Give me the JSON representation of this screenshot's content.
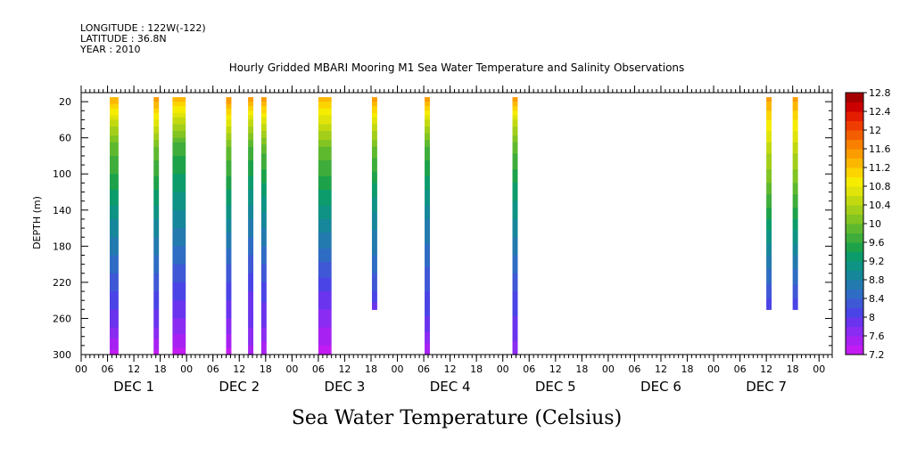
{
  "header": {
    "longitude": "LONGITUDE : 122W(-122)",
    "latitude": "LATITUDE : 36.8N",
    "year": "YEAR : 2010"
  },
  "chart_data": {
    "type": "heatmap",
    "title": "Hourly Gridded MBARI Mooring M1 Sea Water Temperature and Salinity Observations",
    "xlabel_main": "Sea Water Temperature (Celsius)",
    "ylabel": "DEPTH (m)",
    "x_unit": "hours since DEC 1 00:00",
    "xlim": [
      0,
      171
    ],
    "ylim": [
      300,
      10
    ],
    "y_inverted": true,
    "y_ticks": [
      20,
      60,
      100,
      140,
      180,
      220,
      260,
      300
    ],
    "x_hour_ticks": [
      "00",
      "06",
      "12",
      "18",
      "00",
      "06",
      "12",
      "18",
      "00",
      "06",
      "12",
      "18",
      "00",
      "06",
      "12",
      "18",
      "00",
      "06",
      "12",
      "18",
      "00",
      "06",
      "12",
      "18",
      "00",
      "06",
      "12",
      "18",
      "00"
    ],
    "day_labels": [
      "DEC 1",
      "DEC 2",
      "DEC 3",
      "DEC 4",
      "DEC 5",
      "DEC 6",
      "DEC 7"
    ],
    "colorbar": {
      "labels": [
        "12.8",
        "12.4",
        "12",
        "11.6",
        "11.2",
        "10.8",
        "10.4",
        "10",
        "9.6",
        "9.2",
        "8.8",
        "8.4",
        "8",
        "7.6",
        "7.2"
      ],
      "levels": [
        {
          "lo": 7.2,
          "hi": 7.4,
          "color": "#c21cf2"
        },
        {
          "lo": 7.4,
          "hi": 7.6,
          "color": "#a722f2"
        },
        {
          "lo": 7.6,
          "hi": 7.8,
          "color": "#8a2cf2"
        },
        {
          "lo": 7.8,
          "hi": 8.0,
          "color": "#6a34ee"
        },
        {
          "lo": 8.0,
          "hi": 8.2,
          "color": "#4a44e6"
        },
        {
          "lo": 8.2,
          "hi": 8.4,
          "color": "#3f58d6"
        },
        {
          "lo": 8.4,
          "hi": 8.6,
          "color": "#2f6cc4"
        },
        {
          "lo": 8.6,
          "hi": 8.8,
          "color": "#227aae"
        },
        {
          "lo": 8.8,
          "hi": 9.0,
          "color": "#16879a"
        },
        {
          "lo": 9.0,
          "hi": 9.2,
          "color": "#0e9384"
        },
        {
          "lo": 9.2,
          "hi": 9.4,
          "color": "#0c9c6c"
        },
        {
          "lo": 9.4,
          "hi": 9.6,
          "color": "#1da24a"
        },
        {
          "lo": 9.6,
          "hi": 9.8,
          "color": "#3fad3b"
        },
        {
          "lo": 9.8,
          "hi": 10.0,
          "color": "#5fb92f"
        },
        {
          "lo": 10.0,
          "hi": 10.2,
          "color": "#82c422"
        },
        {
          "lo": 10.2,
          "hi": 10.4,
          "color": "#a3ce1a"
        },
        {
          "lo": 10.4,
          "hi": 10.6,
          "color": "#c2d910"
        },
        {
          "lo": 10.6,
          "hi": 10.8,
          "color": "#e0e40a"
        },
        {
          "lo": 10.8,
          "hi": 11.0,
          "color": "#f6ec00"
        },
        {
          "lo": 11.0,
          "hi": 11.2,
          "color": "#fcd400"
        },
        {
          "lo": 11.2,
          "hi": 11.4,
          "color": "#fcb800"
        },
        {
          "lo": 11.4,
          "hi": 11.6,
          "color": "#fb9c00"
        },
        {
          "lo": 11.6,
          "hi": 11.8,
          "color": "#f87f00"
        },
        {
          "lo": 11.8,
          "hi": 12.0,
          "color": "#f35e00"
        },
        {
          "lo": 12.0,
          "hi": 12.2,
          "color": "#ef3c00"
        },
        {
          "lo": 12.2,
          "hi": 12.4,
          "color": "#e41c00"
        },
        {
          "lo": 12.4,
          "hi": 12.6,
          "color": "#cc0000"
        },
        {
          "lo": 12.6,
          "hi": 12.8,
          "color": "#a50000"
        }
      ]
    },
    "observations": [
      {
        "hour_start": 6.5,
        "hour_end": 8.5,
        "depth_bottom": 300,
        "profile": [
          [
            20,
            11.3
          ],
          [
            40,
            10.6
          ],
          [
            70,
            9.9
          ],
          [
            110,
            9.5
          ],
          [
            150,
            9.0
          ],
          [
            190,
            8.6
          ],
          [
            230,
            8.2
          ],
          [
            270,
            7.8
          ],
          [
            300,
            7.3
          ]
        ]
      },
      {
        "hour_start": 16.5,
        "hour_end": 17.7,
        "depth_bottom": 300,
        "profile": [
          [
            20,
            11.4
          ],
          [
            40,
            10.8
          ],
          [
            70,
            10.0
          ],
          [
            110,
            9.5
          ],
          [
            150,
            9.0
          ],
          [
            190,
            8.6
          ],
          [
            230,
            8.2
          ],
          [
            270,
            7.8
          ],
          [
            300,
            7.3
          ]
        ]
      },
      {
        "hour_start": 20.8,
        "hour_end": 23.8,
        "depth_bottom": 300,
        "profile": [
          [
            20,
            11.2
          ],
          [
            40,
            10.5
          ],
          [
            70,
            9.7
          ],
          [
            110,
            9.3
          ],
          [
            150,
            8.9
          ],
          [
            190,
            8.5
          ],
          [
            230,
            8.1
          ],
          [
            270,
            7.7
          ],
          [
            300,
            7.3
          ]
        ]
      },
      {
        "hour_start": 33.0,
        "hour_end": 34.2,
        "depth_bottom": 300,
        "profile": [
          [
            20,
            11.5
          ],
          [
            40,
            10.8
          ],
          [
            70,
            10.0
          ],
          [
            110,
            9.5
          ],
          [
            150,
            9.0
          ],
          [
            190,
            8.5
          ],
          [
            230,
            8.1
          ],
          [
            270,
            7.7
          ],
          [
            300,
            7.3
          ]
        ]
      },
      {
        "hour_start": 38.0,
        "hour_end": 39.2,
        "depth_bottom": 300,
        "profile": [
          [
            20,
            11.4
          ],
          [
            40,
            10.6
          ],
          [
            70,
            9.8
          ],
          [
            110,
            9.3
          ],
          [
            150,
            8.8
          ],
          [
            190,
            8.4
          ],
          [
            230,
            8.0
          ],
          [
            270,
            7.8
          ],
          [
            300,
            7.5
          ]
        ]
      },
      {
        "hour_start": 41.0,
        "hour_end": 42.2,
        "depth_bottom": 300,
        "profile": [
          [
            20,
            11.4
          ],
          [
            40,
            10.7
          ],
          [
            70,
            9.9
          ],
          [
            110,
            9.4
          ],
          [
            150,
            8.9
          ],
          [
            190,
            8.5
          ],
          [
            230,
            8.1
          ],
          [
            270,
            7.8
          ],
          [
            300,
            7.4
          ]
        ]
      },
      {
        "hour_start": 54.0,
        "hour_end": 57.0,
        "depth_bottom": 300,
        "profile": [
          [
            20,
            11.2
          ],
          [
            40,
            10.7
          ],
          [
            70,
            10.0
          ],
          [
            110,
            9.5
          ],
          [
            150,
            9.0
          ],
          [
            190,
            8.5
          ],
          [
            230,
            8.0
          ],
          [
            270,
            7.6
          ],
          [
            300,
            7.3
          ]
        ]
      },
      {
        "hour_start": 66.2,
        "hour_end": 67.4,
        "depth_bottom": 250,
        "profile": [
          [
            20,
            11.4
          ],
          [
            40,
            10.7
          ],
          [
            70,
            10.0
          ],
          [
            110,
            9.4
          ],
          [
            150,
            8.9
          ],
          [
            190,
            8.6
          ],
          [
            230,
            8.2
          ],
          [
            250,
            7.9
          ]
        ]
      },
      {
        "hour_start": 78.2,
        "hour_end": 79.4,
        "depth_bottom": 300,
        "profile": [
          [
            20,
            11.4
          ],
          [
            40,
            10.6
          ],
          [
            70,
            9.8
          ],
          [
            110,
            9.3
          ],
          [
            150,
            8.8
          ],
          [
            190,
            8.5
          ],
          [
            230,
            8.2
          ],
          [
            270,
            7.9
          ],
          [
            300,
            7.4
          ]
        ]
      },
      {
        "hour_start": 98.2,
        "hour_end": 99.4,
        "depth_bottom": 300,
        "profile": [
          [
            20,
            11.4
          ],
          [
            40,
            10.6
          ],
          [
            70,
            9.9
          ],
          [
            110,
            9.4
          ],
          [
            150,
            9.0
          ],
          [
            190,
            8.6
          ],
          [
            230,
            8.2
          ],
          [
            270,
            7.9
          ],
          [
            300,
            7.7
          ]
        ]
      },
      {
        "hour_start": 156.0,
        "hour_end": 157.2,
        "depth_bottom": 250,
        "profile": [
          [
            20,
            11.4
          ],
          [
            40,
            11.0
          ],
          [
            70,
            10.5
          ],
          [
            110,
            10.0
          ],
          [
            150,
            9.4
          ],
          [
            190,
            8.8
          ],
          [
            230,
            8.3
          ],
          [
            250,
            8.0
          ]
        ]
      },
      {
        "hour_start": 162.0,
        "hour_end": 163.2,
        "depth_bottom": 250,
        "profile": [
          [
            20,
            11.4
          ],
          [
            40,
            11.0
          ],
          [
            70,
            10.5
          ],
          [
            110,
            10.0
          ],
          [
            150,
            9.4
          ],
          [
            190,
            8.8
          ],
          [
            230,
            8.3
          ],
          [
            250,
            8.0
          ]
        ]
      }
    ]
  }
}
